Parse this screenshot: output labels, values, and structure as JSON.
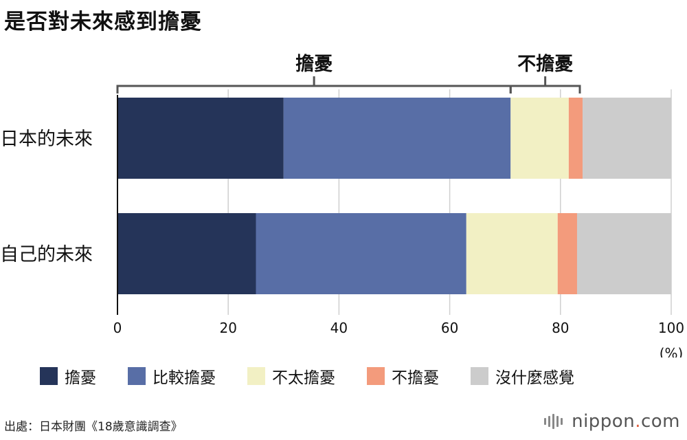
{
  "title": "是否對未來感到擔憂",
  "chart_data": {
    "type": "bar",
    "orientation": "horizontal",
    "stacked": true,
    "categories": [
      "日本的未來",
      "自己的未來"
    ],
    "series": [
      {
        "name": "擔憂",
        "color": "#253459",
        "values": [
          30.0,
          25.0
        ]
      },
      {
        "name": "比較擔憂",
        "color": "#586ea6",
        "values": [
          41.0,
          38.0
        ]
      },
      {
        "name": "不太擔憂",
        "color": "#f2f0c4",
        "values": [
          10.5,
          16.5
        ]
      },
      {
        "name": "不擔憂",
        "color": "#f39b7c",
        "values": [
          2.5,
          3.5
        ]
      },
      {
        "name": "沒什麼感覺",
        "color": "#cccccc",
        "values": [
          16.0,
          17.0
        ]
      }
    ],
    "xlim": [
      0,
      100
    ],
    "xticks": [
      0,
      20,
      40,
      60,
      80,
      100
    ],
    "xunit": "(%)",
    "grid": true,
    "legend_position": "bottom",
    "brackets": [
      {
        "label": "擔憂",
        "from": 0,
        "to": 71
      },
      {
        "label": "不擔憂",
        "from": 71,
        "to": 83.5
      }
    ]
  },
  "source": "出處：日本財團《18歲意識調查》",
  "logo": {
    "text": "nippon",
    "dot": ".",
    "suffix": "com"
  }
}
